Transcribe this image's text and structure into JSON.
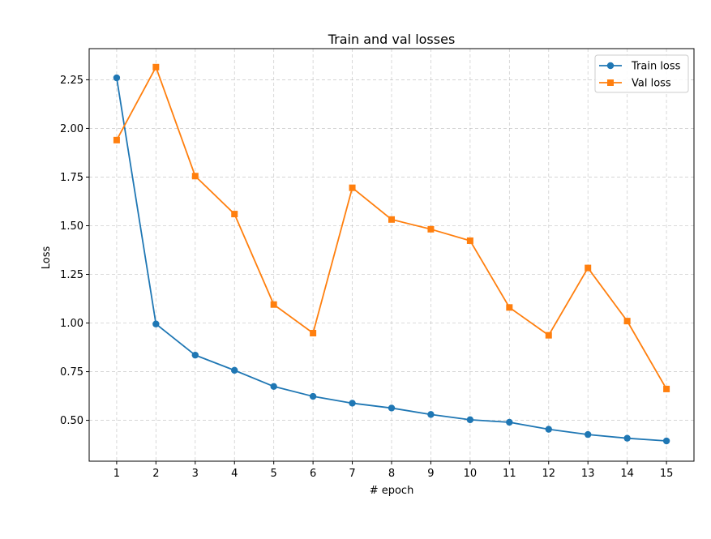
{
  "chart_data": {
    "type": "line",
    "title": "Train and val losses",
    "xlabel": "# epoch",
    "ylabel": "Loss",
    "x": [
      1,
      2,
      3,
      4,
      5,
      6,
      7,
      8,
      9,
      10,
      11,
      12,
      13,
      14,
      15
    ],
    "xlim": [
      0.3,
      15.7
    ],
    "ylim": [
      0.29,
      2.41
    ],
    "yticks": [
      0.5,
      0.75,
      1.0,
      1.25,
      1.5,
      1.75,
      2.0,
      2.25
    ],
    "ytick_labels": [
      "0.50",
      "0.75",
      "1.00",
      "1.25",
      "1.50",
      "1.75",
      "2.00",
      "2.25"
    ],
    "xtick_labels": [
      "1",
      "2",
      "3",
      "4",
      "5",
      "6",
      "7",
      "8",
      "9",
      "10",
      "11",
      "12",
      "13",
      "14",
      "15"
    ],
    "grid": true,
    "legend_position": "top-right",
    "series": [
      {
        "name": "Train loss",
        "color": "#1f77b4",
        "marker": "circle",
        "values": [
          2.26,
          0.995,
          0.835,
          0.757,
          0.674,
          0.623,
          0.588,
          0.563,
          0.53,
          0.503,
          0.49,
          0.454,
          0.427,
          0.408,
          0.394
        ]
      },
      {
        "name": "Val loss",
        "color": "#ff7f0e",
        "marker": "square",
        "values": [
          1.94,
          2.315,
          1.755,
          1.56,
          1.095,
          0.948,
          1.695,
          1.532,
          1.482,
          1.423,
          1.08,
          0.937,
          1.283,
          1.01,
          0.661
        ]
      }
    ]
  }
}
